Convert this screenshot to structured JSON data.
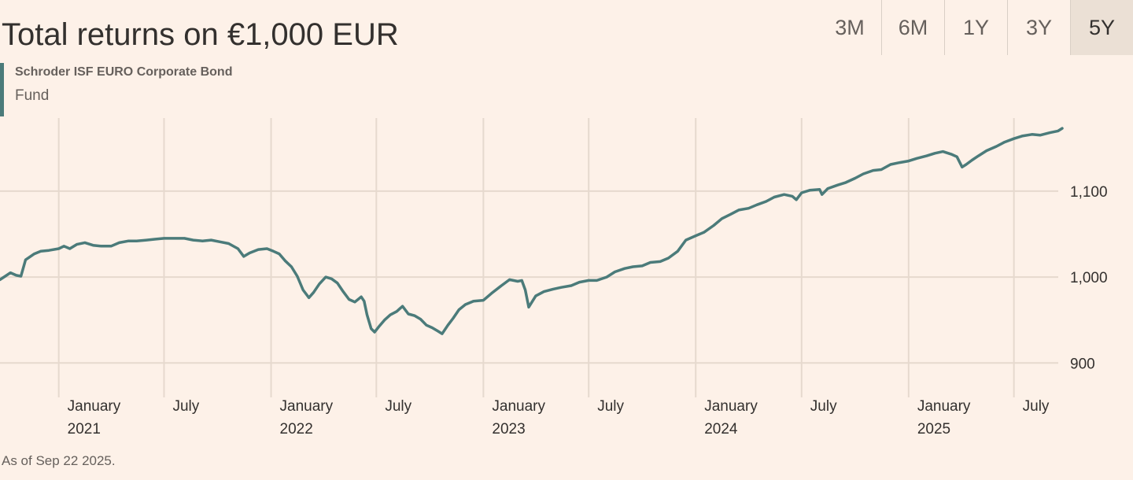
{
  "title": "Total returns on €1,000 EUR",
  "range_tabs": [
    {
      "label": "3M",
      "active": false
    },
    {
      "label": "6M",
      "active": false
    },
    {
      "label": "1Y",
      "active": false
    },
    {
      "label": "3Y",
      "active": false
    },
    {
      "label": "5Y",
      "active": true
    }
  ],
  "footnote": "As of Sep 22 2025.",
  "colors": {
    "series": "#4b7b7a",
    "grid": "#e6d9ce",
    "background": "#fdf1e8"
  },
  "chart_data": {
    "type": "line",
    "title": "Total returns on €1,000 EUR",
    "series": [
      {
        "name": "Schroder ISF EURO Corporate Bond",
        "legend_subtitle": "Fund",
        "points": [
          [
            "2020-09-22",
            997
          ],
          [
            "2020-10-01",
            1001
          ],
          [
            "2020-10-10",
            1005
          ],
          [
            "2020-10-20",
            1002
          ],
          [
            "2020-10-28",
            1001
          ],
          [
            "2020-11-05",
            1020
          ],
          [
            "2020-11-20",
            1027
          ],
          [
            "2020-12-01",
            1030
          ],
          [
            "2020-12-15",
            1031
          ],
          [
            "2021-01-01",
            1033
          ],
          [
            "2021-01-10",
            1036
          ],
          [
            "2021-01-20",
            1033
          ],
          [
            "2021-02-01",
            1038
          ],
          [
            "2021-02-15",
            1040
          ],
          [
            "2021-03-01",
            1037
          ],
          [
            "2021-03-15",
            1036
          ],
          [
            "2021-04-01",
            1036
          ],
          [
            "2021-04-15",
            1040
          ],
          [
            "2021-05-01",
            1042
          ],
          [
            "2021-05-15",
            1042
          ],
          [
            "2021-06-01",
            1043
          ],
          [
            "2021-06-15",
            1044
          ],
          [
            "2021-07-01",
            1045
          ],
          [
            "2021-07-20",
            1045
          ],
          [
            "2021-08-05",
            1045
          ],
          [
            "2021-08-20",
            1043
          ],
          [
            "2021-09-05",
            1042
          ],
          [
            "2021-09-20",
            1043
          ],
          [
            "2021-10-05",
            1041
          ],
          [
            "2021-10-20",
            1039
          ],
          [
            "2021-11-05",
            1033
          ],
          [
            "2021-11-15",
            1024
          ],
          [
            "2021-11-25",
            1028
          ],
          [
            "2021-12-10",
            1032
          ],
          [
            "2021-12-25",
            1033
          ],
          [
            "2022-01-05",
            1030
          ],
          [
            "2022-01-15",
            1027
          ],
          [
            "2022-01-25",
            1019
          ],
          [
            "2022-02-05",
            1012
          ],
          [
            "2022-02-15",
            1001
          ],
          [
            "2022-02-25",
            985
          ],
          [
            "2022-03-07",
            976
          ],
          [
            "2022-03-15",
            982
          ],
          [
            "2022-03-25",
            992
          ],
          [
            "2022-04-05",
            1000
          ],
          [
            "2022-04-15",
            998
          ],
          [
            "2022-04-25",
            993
          ],
          [
            "2022-05-05",
            983
          ],
          [
            "2022-05-15",
            974
          ],
          [
            "2022-05-25",
            971
          ],
          [
            "2022-06-05",
            977
          ],
          [
            "2022-06-10",
            972
          ],
          [
            "2022-06-15",
            956
          ],
          [
            "2022-06-22",
            940
          ],
          [
            "2022-06-28",
            936
          ],
          [
            "2022-07-05",
            942
          ],
          [
            "2022-07-15",
            950
          ],
          [
            "2022-07-25",
            956
          ],
          [
            "2022-08-05",
            960
          ],
          [
            "2022-08-15",
            966
          ],
          [
            "2022-08-25",
            957
          ],
          [
            "2022-09-05",
            955
          ],
          [
            "2022-09-15",
            951
          ],
          [
            "2022-09-25",
            944
          ],
          [
            "2022-10-05",
            941
          ],
          [
            "2022-10-15",
            937
          ],
          [
            "2022-10-22",
            934
          ],
          [
            "2022-11-01",
            944
          ],
          [
            "2022-11-10",
            952
          ],
          [
            "2022-11-20",
            962
          ],
          [
            "2022-12-01",
            968
          ],
          [
            "2022-12-15",
            972
          ],
          [
            "2023-01-01",
            973
          ],
          [
            "2023-01-15",
            981
          ],
          [
            "2023-02-01",
            990
          ],
          [
            "2023-02-15",
            997
          ],
          [
            "2023-03-01",
            995
          ],
          [
            "2023-03-08",
            996
          ],
          [
            "2023-03-14",
            985
          ],
          [
            "2023-03-20",
            965
          ],
          [
            "2023-04-01",
            978
          ],
          [
            "2023-04-15",
            983
          ],
          [
            "2023-05-01",
            986
          ],
          [
            "2023-05-15",
            988
          ],
          [
            "2023-06-01",
            990
          ],
          [
            "2023-06-15",
            994
          ],
          [
            "2023-07-01",
            996
          ],
          [
            "2023-07-15",
            996
          ],
          [
            "2023-08-01",
            1000
          ],
          [
            "2023-08-15",
            1006
          ],
          [
            "2023-09-01",
            1010
          ],
          [
            "2023-09-15",
            1012
          ],
          [
            "2023-10-01",
            1013
          ],
          [
            "2023-10-15",
            1017
          ],
          [
            "2023-11-01",
            1018
          ],
          [
            "2023-11-15",
            1022
          ],
          [
            "2023-12-01",
            1030
          ],
          [
            "2023-12-15",
            1043
          ],
          [
            "2024-01-01",
            1048
          ],
          [
            "2024-01-15",
            1052
          ],
          [
            "2024-02-01",
            1060
          ],
          [
            "2024-02-15",
            1068
          ],
          [
            "2024-03-01",
            1073
          ],
          [
            "2024-03-15",
            1078
          ],
          [
            "2024-04-01",
            1080
          ],
          [
            "2024-04-15",
            1084
          ],
          [
            "2024-05-01",
            1088
          ],
          [
            "2024-05-15",
            1093
          ],
          [
            "2024-06-01",
            1096
          ],
          [
            "2024-06-15",
            1094
          ],
          [
            "2024-06-22",
            1090
          ],
          [
            "2024-07-01",
            1098
          ],
          [
            "2024-07-15",
            1101
          ],
          [
            "2024-08-01",
            1102
          ],
          [
            "2024-08-05",
            1096
          ],
          [
            "2024-08-15",
            1103
          ],
          [
            "2024-09-01",
            1107
          ],
          [
            "2024-09-15",
            1110
          ],
          [
            "2024-10-01",
            1115
          ],
          [
            "2024-10-15",
            1120
          ],
          [
            "2024-11-01",
            1124
          ],
          [
            "2024-11-15",
            1125
          ],
          [
            "2024-12-01",
            1131
          ],
          [
            "2024-12-15",
            1133
          ],
          [
            "2025-01-01",
            1135
          ],
          [
            "2025-01-15",
            1138
          ],
          [
            "2025-02-01",
            1141
          ],
          [
            "2025-02-15",
            1144
          ],
          [
            "2025-03-01",
            1146
          ],
          [
            "2025-03-15",
            1143
          ],
          [
            "2025-03-25",
            1140
          ],
          [
            "2025-04-03",
            1128
          ],
          [
            "2025-04-10",
            1131
          ],
          [
            "2025-04-20",
            1136
          ],
          [
            "2025-05-01",
            1141
          ],
          [
            "2025-05-15",
            1147
          ],
          [
            "2025-06-01",
            1152
          ],
          [
            "2025-06-15",
            1157
          ],
          [
            "2025-07-01",
            1161
          ],
          [
            "2025-07-15",
            1164
          ],
          [
            "2025-08-01",
            1166
          ],
          [
            "2025-08-15",
            1165
          ],
          [
            "2025-09-01",
            1168
          ],
          [
            "2025-09-15",
            1170
          ],
          [
            "2025-09-22",
            1173
          ]
        ]
      }
    ],
    "x_range": [
      "2020-09-22",
      "2025-09-22"
    ],
    "ylim": [
      860,
      1185
    ],
    "y_ticks": [
      {
        "value": 900,
        "label": "900"
      },
      {
        "value": 1000,
        "label": "1,000"
      },
      {
        "value": 1100,
        "label": "1,100"
      }
    ],
    "x_gridlines": [
      "2021-01-01",
      "2021-07-01",
      "2022-01-01",
      "2022-07-01",
      "2023-01-01",
      "2023-07-01",
      "2024-01-01",
      "2024-07-01",
      "2025-01-01",
      "2025-07-01"
    ],
    "x_tick_labels": [
      {
        "date": "2021-01-01",
        "line1": "January",
        "line2": "2021"
      },
      {
        "date": "2021-07-01",
        "line1": "July",
        "line2": ""
      },
      {
        "date": "2022-01-01",
        "line1": "January",
        "line2": "2022"
      },
      {
        "date": "2022-07-01",
        "line1": "July",
        "line2": ""
      },
      {
        "date": "2023-01-01",
        "line1": "January",
        "line2": "2023"
      },
      {
        "date": "2023-07-01",
        "line1": "July",
        "line2": ""
      },
      {
        "date": "2024-01-01",
        "line1": "January",
        "line2": "2024"
      },
      {
        "date": "2024-07-01",
        "line1": "July",
        "line2": ""
      },
      {
        "date": "2025-01-01",
        "line1": "January",
        "line2": "2025"
      },
      {
        "date": "2025-07-01",
        "line1": "July",
        "line2": ""
      }
    ],
    "grid": true,
    "legend_position": "top-left"
  }
}
